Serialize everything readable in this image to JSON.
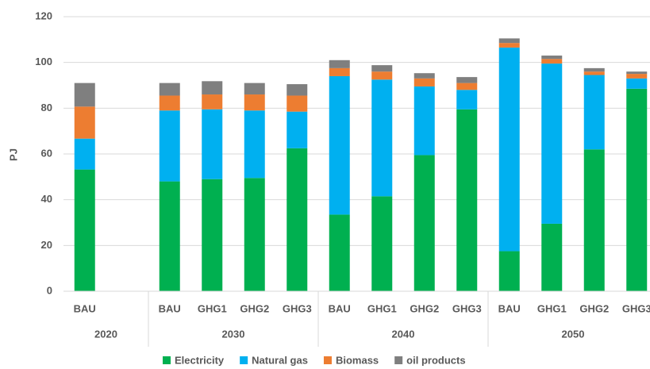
{
  "chart_data": {
    "type": "stacked_bar",
    "y_label": "PJ",
    "categories": [
      "BAU",
      null,
      "BAU",
      "GHG1",
      "GHG2",
      "GHG3",
      "BAU",
      "GHG1",
      "GHG2",
      "GHG3",
      "BAU",
      "GHG1",
      "GHG2",
      "GHG3"
    ],
    "groups": [
      "2020",
      "2020",
      "2030",
      "2030",
      "2030",
      "2030",
      "2040",
      "2040",
      "2040",
      "2040",
      "2050",
      "2050",
      "2050",
      "2050"
    ],
    "series": [
      {
        "name": "Electricity",
        "color": "#00b050",
        "values": [
          53.2,
          null,
          48,
          49,
          49.5,
          62.5,
          33.5,
          41.5,
          59.5,
          79.5,
          17.5,
          29.5,
          62,
          88.5
        ]
      },
      {
        "name": "Natural gas",
        "color": "#00b0f0",
        "values": [
          13.5,
          null,
          31,
          30.5,
          29.5,
          16,
          60.5,
          51,
          30,
          8.5,
          89,
          70,
          32.5,
          4.5
        ]
      },
      {
        "name": "Biomass",
        "color": "#ed7d31",
        "values": [
          14,
          null,
          6.5,
          6.5,
          7,
          7,
          3.5,
          3.5,
          3.5,
          3,
          2,
          2,
          1.5,
          2
        ]
      },
      {
        "name": "oil products",
        "color": "#7f7f7f",
        "values": [
          10.3,
          null,
          5.5,
          5.8,
          5,
          5,
          3.5,
          2.8,
          2.3,
          2.6,
          2,
          1.5,
          1.5,
          1
        ]
      }
    ],
    "ylim": [
      0,
      120
    ],
    "yticks": [
      0,
      20,
      40,
      60,
      80,
      100,
      120
    ],
    "grid": true,
    "legend": "bottom"
  }
}
